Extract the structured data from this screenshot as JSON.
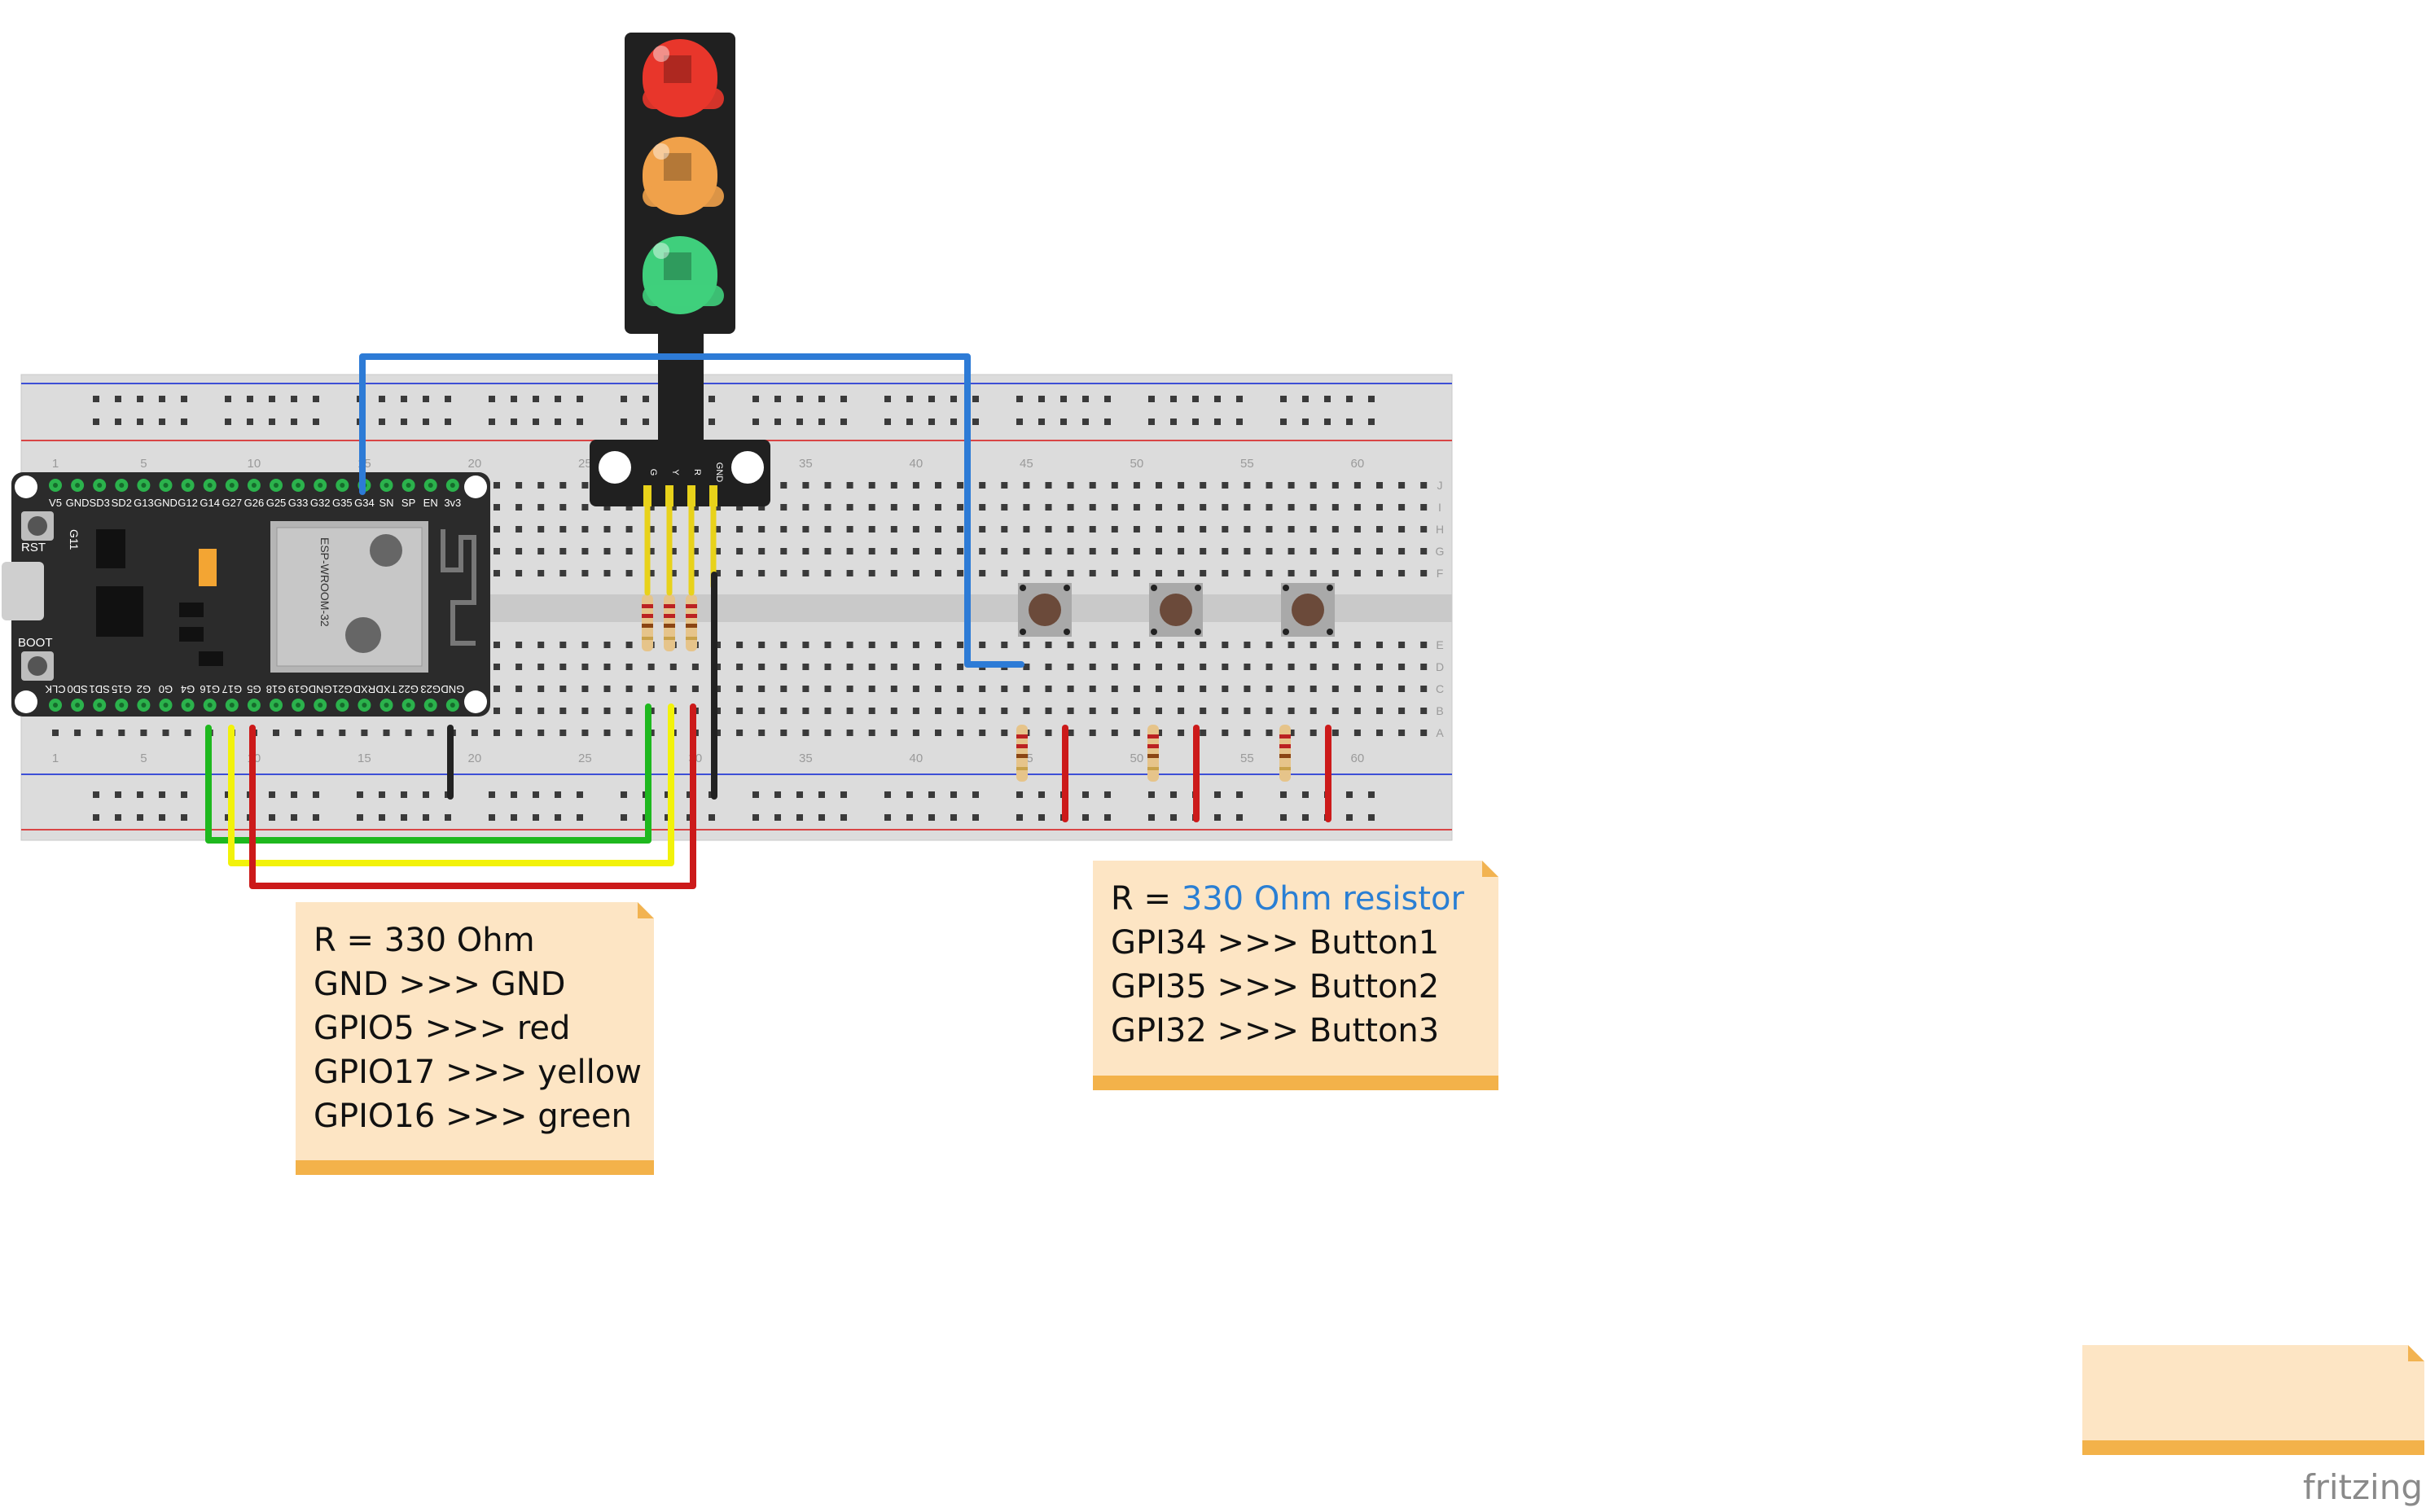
{
  "esp32": {
    "top_pins": [
      "V5",
      "GND",
      "SD3",
      "SD2",
      "G13",
      "GND",
      "G12",
      "G14",
      "G27",
      "G26",
      "G25",
      "G33",
      "G32",
      "G35",
      "G34",
      "SN",
      "SP",
      "EN",
      "3v3"
    ],
    "bottom_pins": [
      "CLK",
      "SD0",
      "SD1",
      "G15",
      "G2",
      "G0",
      "G4",
      "G16",
      "G17",
      "G5",
      "G18",
      "G19",
      "GND",
      "G21",
      "RXD",
      "TXD",
      "G22",
      "G23",
      "GND"
    ],
    "rst_label": "RST",
    "boot_label": "BOOT",
    "g11_label": "G11",
    "module_label": "ESP-WROOM-32"
  },
  "breadboard": {
    "column_numbers": [
      "1",
      "5",
      "10",
      "15",
      "20",
      "25",
      "30",
      "35",
      "40",
      "45",
      "50",
      "55",
      "60"
    ],
    "row_letters_top": [
      "J",
      "I",
      "H",
      "G",
      "F"
    ],
    "row_letters_bottom": [
      "E",
      "D",
      "C",
      "B",
      "A"
    ]
  },
  "traffic_light": {
    "pin_labels": [
      "G",
      "Y",
      "R",
      "GND"
    ],
    "lights": [
      {
        "name": "red",
        "color": "#e8362b"
      },
      {
        "name": "yellow",
        "color": "#f0a14a"
      },
      {
        "name": "green",
        "color": "#3fcf7c"
      }
    ]
  },
  "notes": {
    "led_note": {
      "lines": [
        "R = 330 Ohm",
        "GND >>> GND",
        "GPIO5 >>> red",
        "GPIO17 >>> yellow",
        "GPIO16 >>> green"
      ]
    },
    "button_note": {
      "r_prefix": "R = ",
      "r_value": "330 Ohm resistor",
      "lines": [
        "GPI34 >>> Button1",
        "GPI35 >>> Button2",
        "GPI32 >>> Button3"
      ]
    }
  },
  "brand": "fritzing",
  "colors": {
    "wire_green": "#1eb81e",
    "wire_yellow": "#f2f20a",
    "wire_red": "#cc1a1a",
    "wire_black": "#222222",
    "wire_blue": "#2d7bd6",
    "board_black": "#2b2b2b",
    "note_bg": "#fde5c4",
    "note_bar": "#f3b24a"
  }
}
